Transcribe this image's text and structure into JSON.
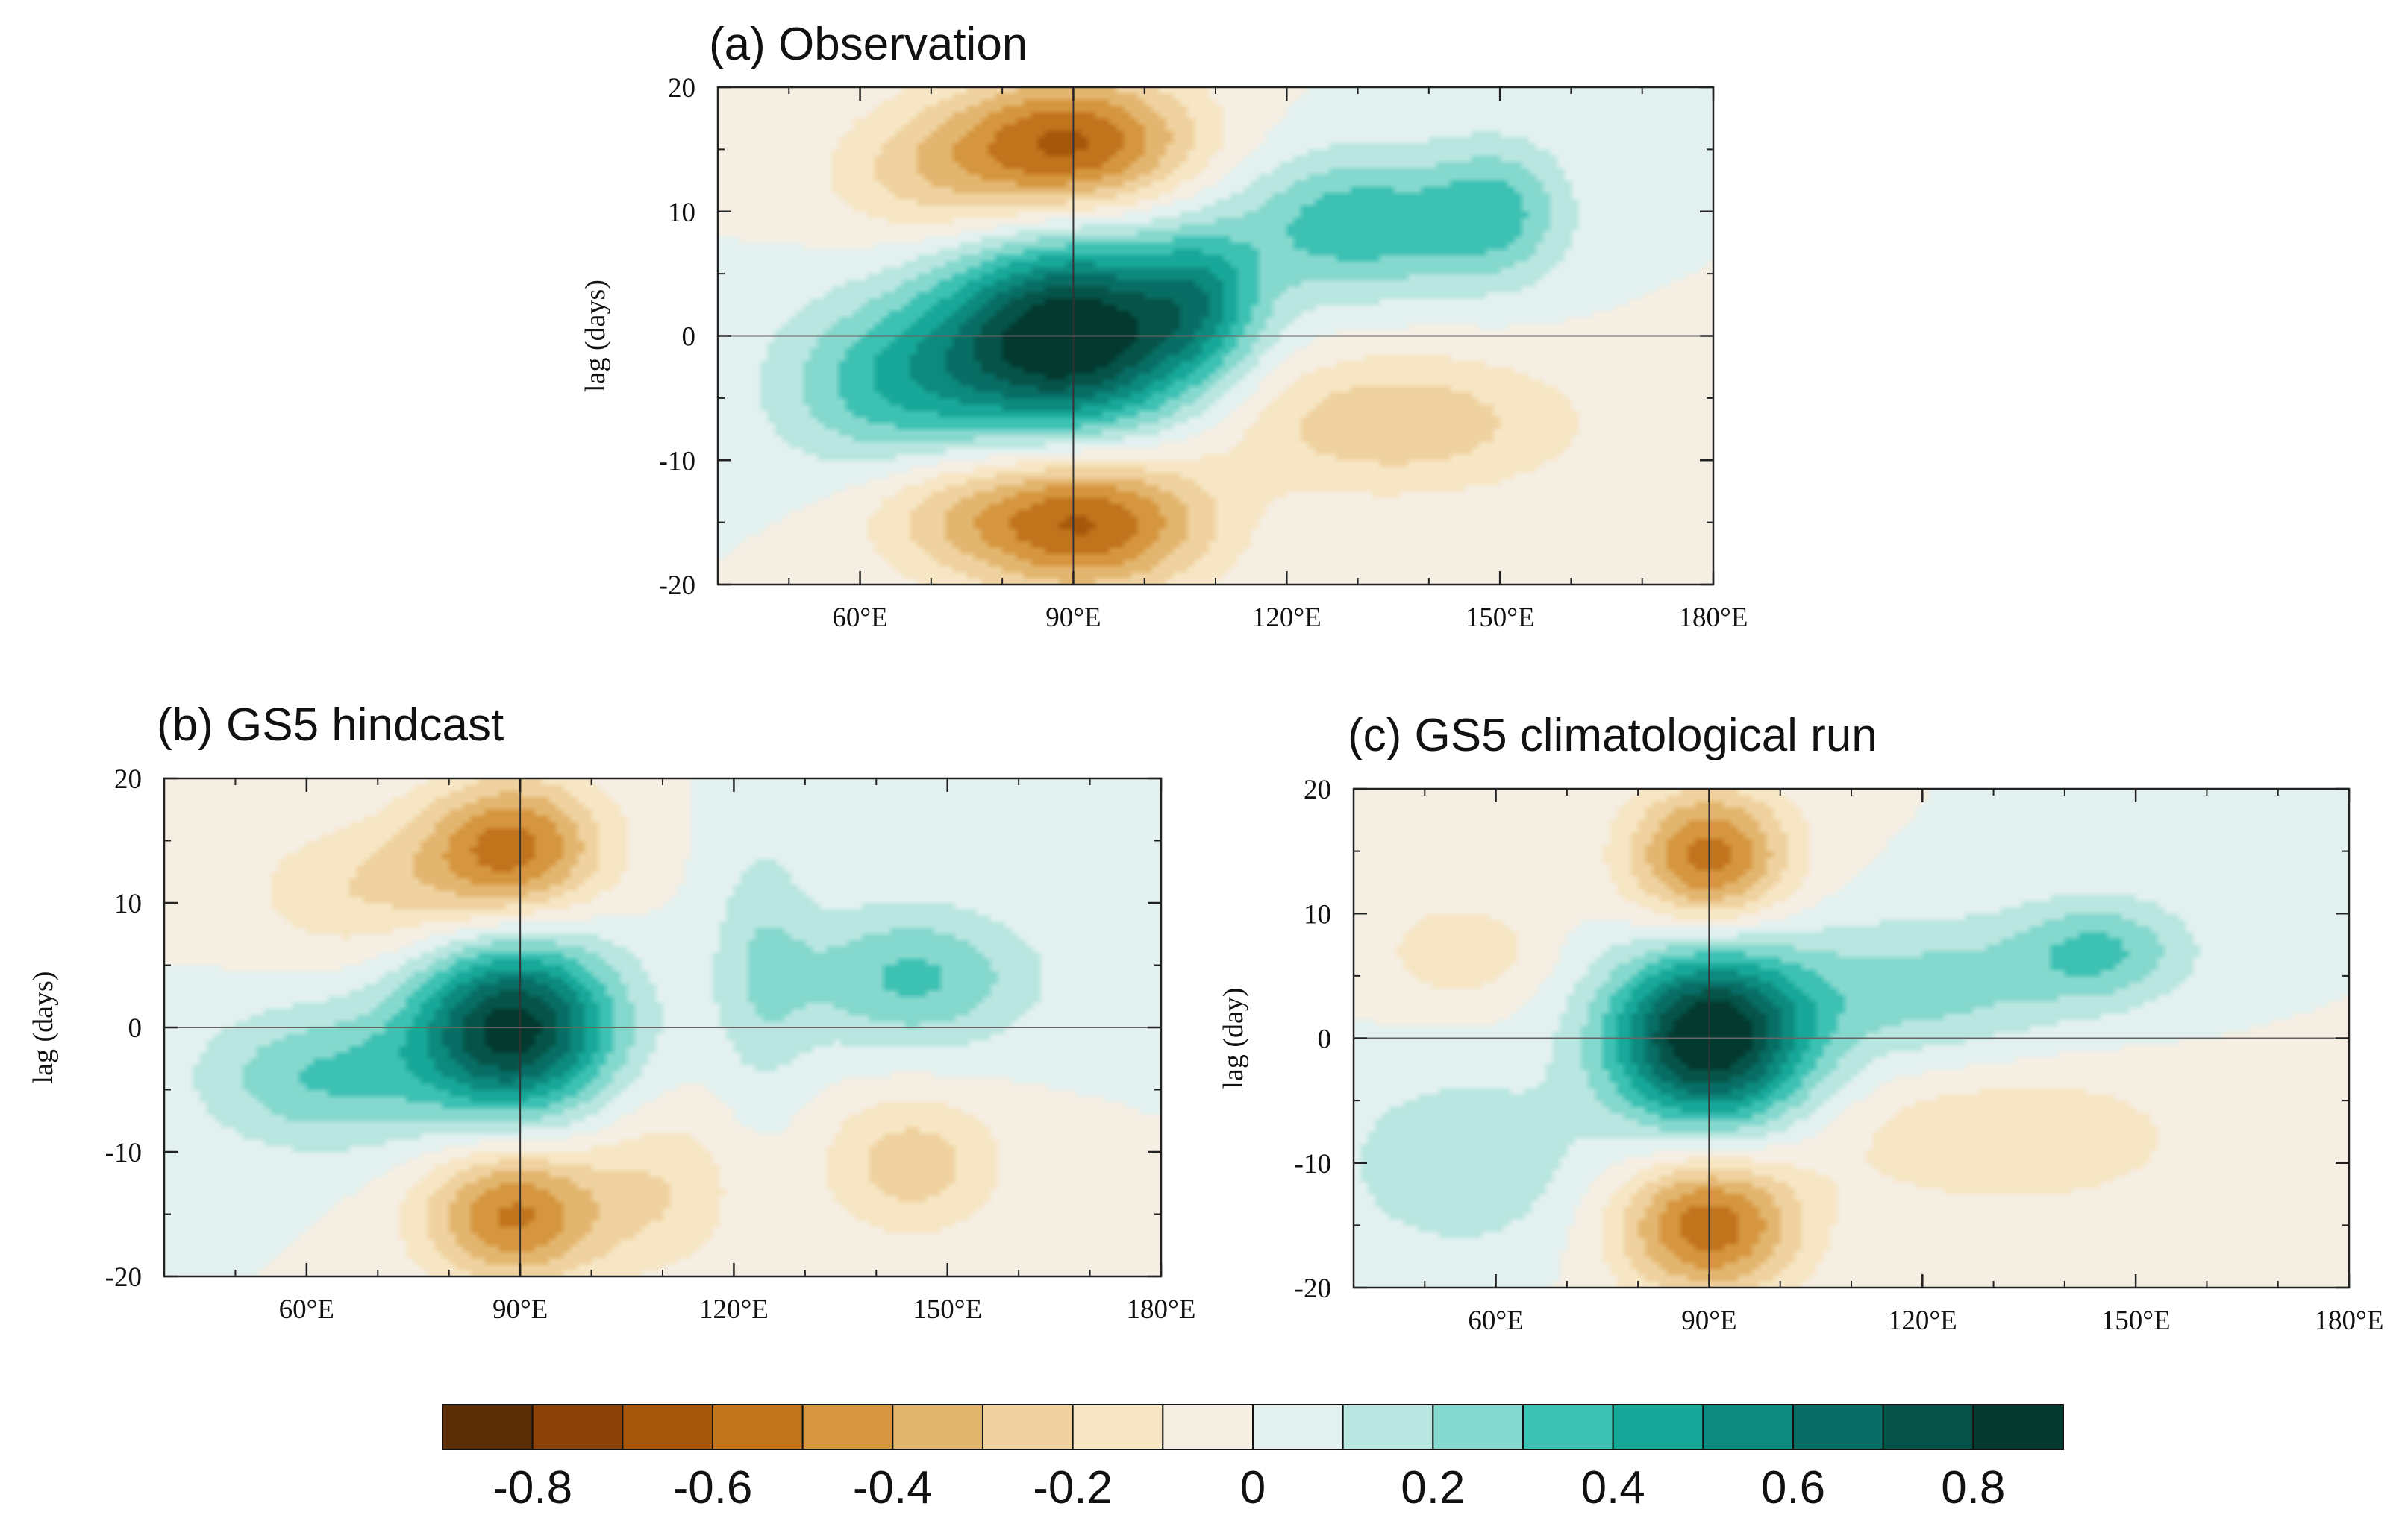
{
  "chart_data": {
    "type": "heatmap",
    "panels": [
      {
        "id": "a",
        "title": "(a) Observation",
        "ylabel": "lag (days)",
        "x_ticks": [
          "60°E",
          "90°E",
          "120°E",
          "150°E",
          "180°E"
        ],
        "x_tick_values": [
          60,
          90,
          120,
          150,
          180
        ],
        "y_ticks": [
          "20",
          "10",
          "0",
          "-10",
          "-20"
        ],
        "y_tick_values": [
          20,
          10,
          0,
          -10,
          -20
        ],
        "xlim": [
          40,
          180
        ],
        "ylim": [
          -20,
          20
        ],
        "blobs": [
          {
            "x": 90,
            "y": 0,
            "sx": 13,
            "sy": 5.5,
            "a": 0.92
          },
          {
            "x": 65,
            "y": -4,
            "sx": 12,
            "sy": 5,
            "a": 0.35
          },
          {
            "x": 108,
            "y": 3,
            "sx": 6,
            "sy": 4,
            "a": 0.3
          },
          {
            "x": 130,
            "y": 9,
            "sx": 12,
            "sy": 4,
            "a": 0.38
          },
          {
            "x": 150,
            "y": 10,
            "sx": 7,
            "sy": 4,
            "a": 0.28
          },
          {
            "x": 90,
            "y": 15.5,
            "sx": 12,
            "sy": 4,
            "a": -0.6
          },
          {
            "x": 70,
            "y": 13,
            "sx": 11,
            "sy": 4,
            "a": -0.22
          },
          {
            "x": 92,
            "y": -15,
            "sx": 12,
            "sy": 4,
            "a": -0.6
          },
          {
            "x": 72,
            "y": -14,
            "sx": 10,
            "sy": 4,
            "a": -0.2
          },
          {
            "x": 135,
            "y": -7,
            "sx": 18,
            "sy": 4,
            "a": -0.28
          }
        ]
      },
      {
        "id": "b",
        "title": "(b) GS5 hindcast",
        "ylabel": "lag (days)",
        "x_ticks": [
          "60°E",
          "90°E",
          "120°E",
          "150°E",
          "180°E"
        ],
        "x_tick_values": [
          60,
          90,
          120,
          150,
          180
        ],
        "y_ticks": [
          "20",
          "10",
          "0",
          "-10",
          "-20"
        ],
        "y_tick_values": [
          20,
          10,
          0,
          -10,
          -20
        ],
        "xlim": [
          40,
          180
        ],
        "ylim": [
          -20,
          20
        ],
        "blobs": [
          {
            "x": 89,
            "y": 0,
            "sx": 10,
            "sy": 5,
            "a": 0.85
          },
          {
            "x": 62,
            "y": -4,
            "sx": 12,
            "sy": 4,
            "a": 0.3
          },
          {
            "x": 145,
            "y": 4,
            "sx": 12,
            "sy": 4,
            "a": 0.32
          },
          {
            "x": 124,
            "y": 5,
            "sx": 5,
            "sy": 8,
            "a": 0.17
          },
          {
            "x": 89,
            "y": 14.5,
            "sx": 9,
            "sy": 4,
            "a": -0.52
          },
          {
            "x": 70,
            "y": 11,
            "sx": 13,
            "sy": 4,
            "a": -0.2
          },
          {
            "x": 89,
            "y": -15,
            "sx": 9,
            "sy": 4,
            "a": -0.52
          },
          {
            "x": 145,
            "y": -11,
            "sx": 9,
            "sy": 4,
            "a": -0.26
          },
          {
            "x": 110,
            "y": -13,
            "sx": 8,
            "sy": 5,
            "a": -0.18
          }
        ]
      },
      {
        "id": "c",
        "title": "(c) GS5 climatological run",
        "ylabel": "lag (day)",
        "x_ticks": [
          "60°E",
          "90°E",
          "120°E",
          "150°E",
          "180°E"
        ],
        "x_tick_values": [
          60,
          90,
          120,
          150,
          180
        ],
        "y_ticks": [
          "20",
          "10",
          "0",
          "-10",
          "-20"
        ],
        "y_tick_values": [
          20,
          10,
          0,
          -10,
          -20
        ],
        "xlim": [
          40,
          180
        ],
        "ylim": [
          -20,
          20
        ],
        "blobs": [
          {
            "x": 90,
            "y": 0,
            "sx": 10,
            "sy": 5,
            "a": 0.93
          },
          {
            "x": 120,
            "y": 4,
            "sx": 14,
            "sy": 4,
            "a": 0.24
          },
          {
            "x": 145,
            "y": 7,
            "sx": 9,
            "sy": 3,
            "a": 0.3
          },
          {
            "x": 55,
            "y": -10,
            "sx": 12,
            "sy": 5,
            "a": 0.2
          },
          {
            "x": 90,
            "y": 14.5,
            "sx": 8,
            "sy": 4,
            "a": -0.55
          },
          {
            "x": 90,
            "y": -15,
            "sx": 9,
            "sy": 4,
            "a": -0.57
          },
          {
            "x": 55,
            "y": 7,
            "sx": 8,
            "sy": 3,
            "a": -0.18
          },
          {
            "x": 132,
            "y": -8,
            "sx": 18,
            "sy": 4,
            "a": -0.2
          }
        ]
      }
    ],
    "colorbar": {
      "ticks": [
        "-0.8",
        "-0.6",
        "-0.4",
        "-0.2",
        "0",
        "0.2",
        "0.4",
        "0.6",
        "0.8"
      ],
      "levels": [
        -0.8,
        -0.7,
        -0.6,
        -0.5,
        -0.4,
        -0.3,
        -0.2,
        -0.1,
        0,
        0.1,
        0.2,
        0.3,
        0.4,
        0.5,
        0.6,
        0.7,
        0.8
      ],
      "colors": [
        "#5a2d06",
        "#8a4208",
        "#a6570b",
        "#c1741c",
        "#d6963f",
        "#e3b66f",
        "#efd29f",
        "#f7e6c4",
        "#f5eee3",
        "#e2f1ef",
        "#b9e6e0",
        "#84d8cd",
        "#3dc1b3",
        "#17a89a",
        "#0d8a7e",
        "#086e65",
        "#065449",
        "#03392f"
      ]
    },
    "gridlines": {
      "x": 90,
      "y": 0
    }
  }
}
